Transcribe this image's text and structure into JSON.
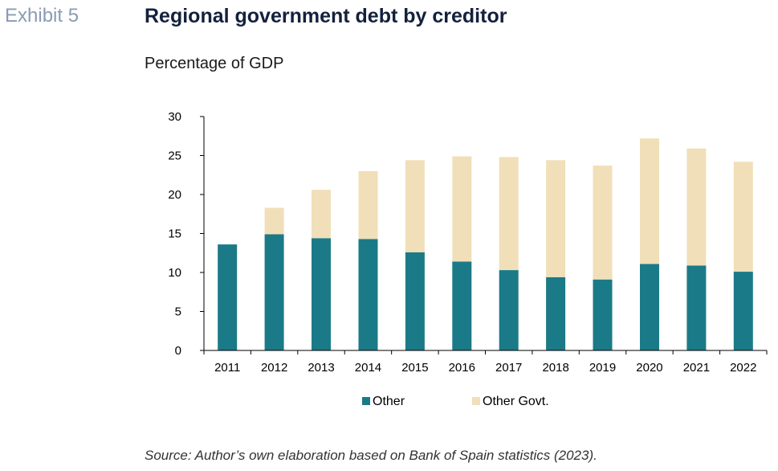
{
  "header": {
    "exhibit": "Exhibit 5",
    "title": "Regional government debt by creditor",
    "subtitle": "Percentage of GDP"
  },
  "footer": {
    "source": "Source: Author’s own elaboration based on Bank of Spain statistics (2023)."
  },
  "colors": {
    "other": "#1b7a87",
    "other_govt": "#f0dfb8"
  },
  "chart_data": {
    "type": "bar",
    "stacked": true,
    "categories": [
      "2011",
      "2012",
      "2013",
      "2014",
      "2015",
      "2016",
      "2017",
      "2018",
      "2019",
      "2020",
      "2021",
      "2022"
    ],
    "series": [
      {
        "name": "Other",
        "values": [
          13.6,
          14.9,
          14.4,
          14.3,
          12.6,
          11.4,
          10.3,
          9.4,
          9.1,
          11.1,
          10.9,
          10.1
        ]
      },
      {
        "name": "Other Govt.",
        "values": [
          0,
          3.4,
          6.2,
          8.7,
          11.8,
          13.5,
          14.5,
          15.0,
          14.6,
          16.1,
          15.0,
          14.1
        ]
      }
    ],
    "ylim": [
      0,
      30
    ],
    "yticks": [
      0,
      5,
      10,
      15,
      20,
      25,
      30
    ],
    "legend_position": "bottom",
    "grid": false
  }
}
